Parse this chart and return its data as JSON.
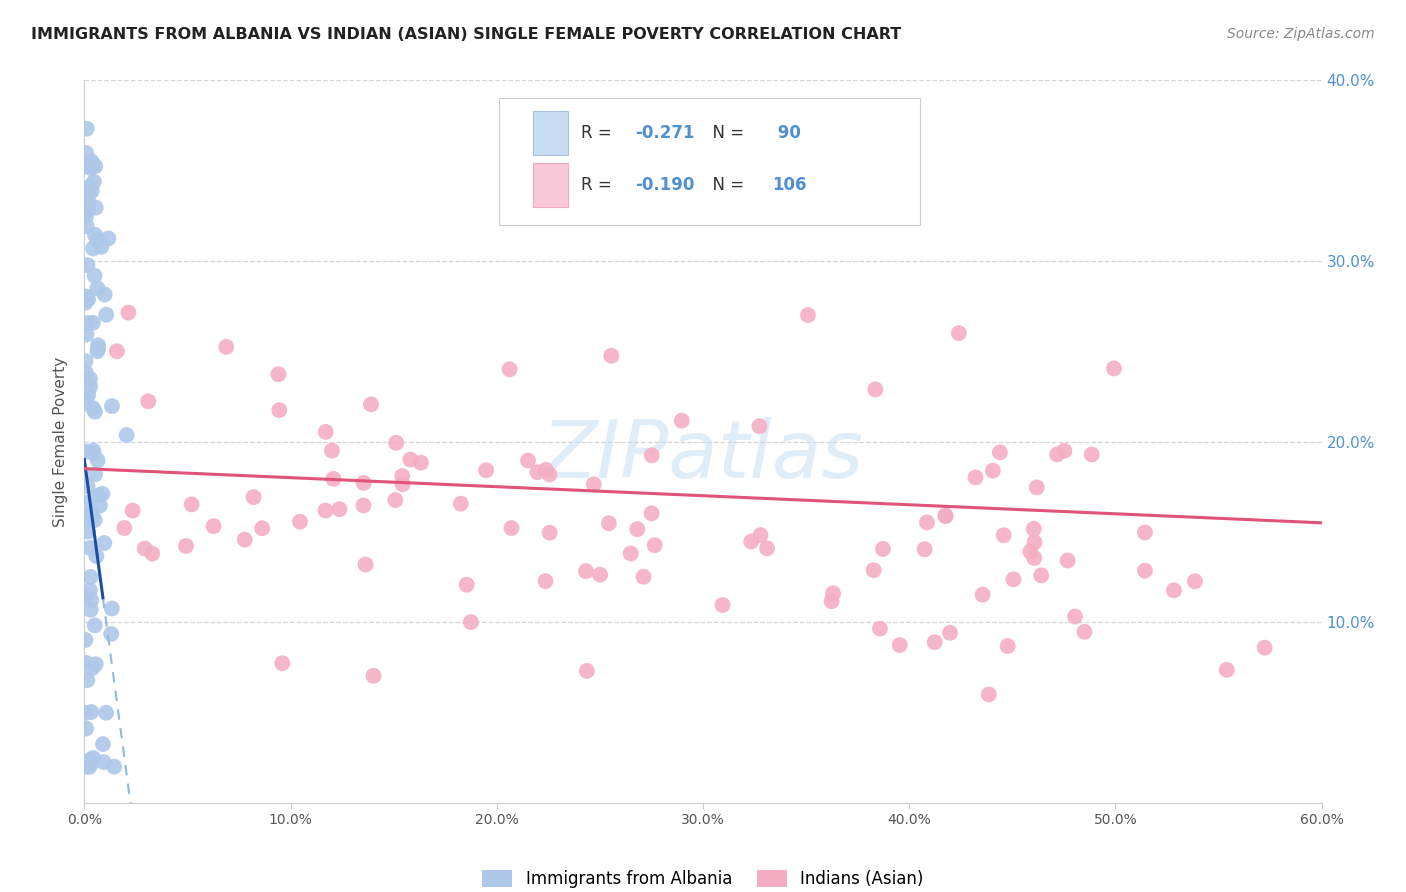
{
  "title": "IMMIGRANTS FROM ALBANIA VS INDIAN (ASIAN) SINGLE FEMALE POVERTY CORRELATION CHART",
  "source": "Source: ZipAtlas.com",
  "ylabel": "Single Female Poverty",
  "xlim": [
    0.0,
    0.6
  ],
  "ylim": [
    0.0,
    0.4
  ],
  "legend_labels": [
    "Immigrants from Albania",
    "Indians (Asian)"
  ],
  "legend_R": [
    -0.271,
    -0.19
  ],
  "legend_N": [
    90,
    106
  ],
  "blue_color": "#adc8e8",
  "pink_color": "#f4aec4",
  "blue_line_color": "#1a4fa0",
  "pink_line_color": "#e0547a",
  "blue_line_dashed_color": "#90b8e0",
  "watermark": "ZIPatlas",
  "background_color": "#ffffff",
  "grid_color": "#cccccc",
  "title_color": "#222222",
  "right_tick_color": "#5090d0"
}
